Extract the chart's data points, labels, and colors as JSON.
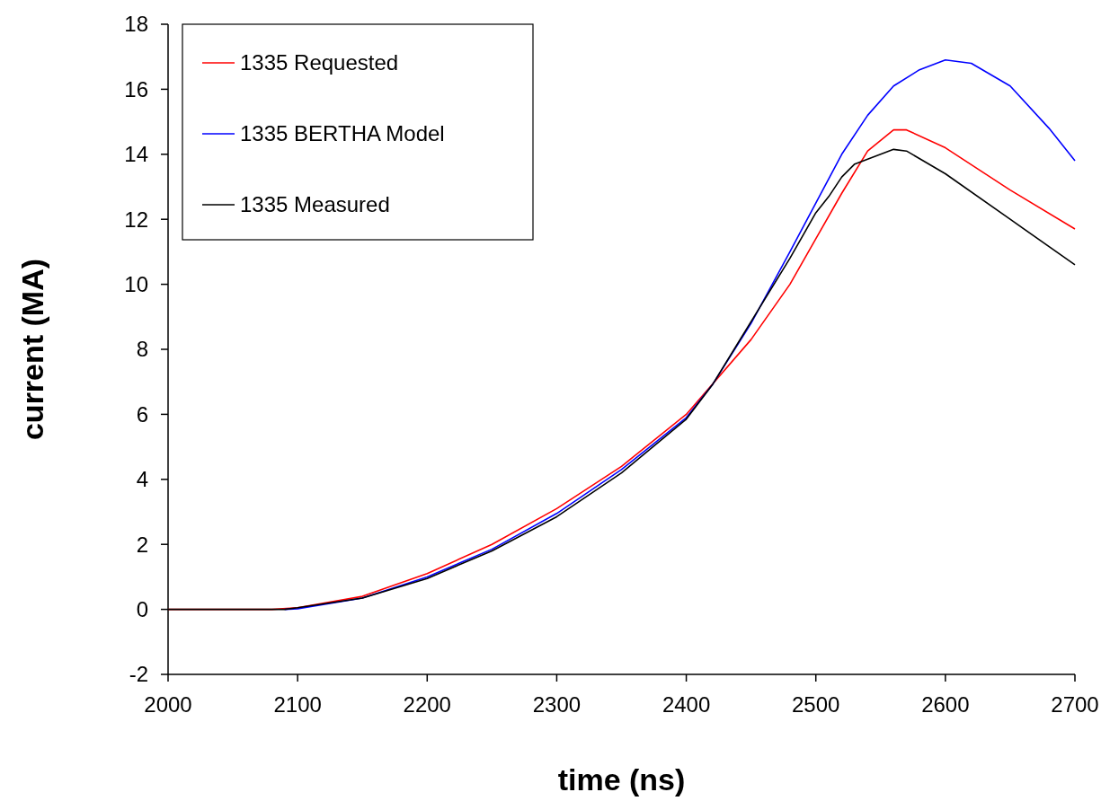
{
  "chart_data": {
    "type": "line",
    "xlabel": "time (ns)",
    "ylabel": "current (MA)",
    "xlim": [
      2000,
      2700
    ],
    "xticks": [
      2000,
      2100,
      2200,
      2300,
      2400,
      2500,
      2600,
      2700
    ],
    "ylim": [
      -2,
      18
    ],
    "yticks": [
      -2,
      0,
      2,
      4,
      6,
      8,
      10,
      12,
      14,
      16,
      18
    ],
    "grid": false,
    "legend": "top left",
    "marker": "none",
    "line_style": "solid",
    "series": [
      {
        "name": "1335 Requested",
        "color": "#ff0000",
        "x": [
          2000,
          2080,
          2100,
          2150,
          2200,
          2250,
          2300,
          2350,
          2400,
          2450,
          2480,
          2500,
          2520,
          2540,
          2560,
          2570,
          2600,
          2650,
          2700
        ],
        "values": [
          0,
          0,
          0.05,
          0.4,
          1.1,
          2.0,
          3.1,
          4.4,
          6.0,
          8.3,
          10.0,
          11.4,
          12.8,
          14.1,
          14.75,
          14.75,
          14.2,
          12.9,
          11.7
        ]
      },
      {
        "name": "1335 BERTHA Model",
        "color": "#0000ff",
        "x": [
          2090,
          2100,
          2150,
          2200,
          2250,
          2300,
          2350,
          2400,
          2420,
          2450,
          2480,
          2500,
          2520,
          2540,
          2560,
          2580,
          2600,
          2620,
          2650,
          2680,
          2700
        ],
        "values": [
          0,
          0.02,
          0.35,
          1.0,
          1.85,
          2.95,
          4.3,
          5.9,
          6.9,
          8.8,
          11.0,
          12.5,
          14.0,
          15.2,
          16.1,
          16.6,
          16.9,
          16.8,
          16.1,
          14.8,
          13.8
        ]
      },
      {
        "name": "1335 Measured",
        "color": "#000000",
        "x": [
          2000,
          2090,
          2100,
          2150,
          2200,
          2250,
          2300,
          2350,
          2400,
          2420,
          2440,
          2460,
          2480,
          2500,
          2510,
          2520,
          2530,
          2540,
          2550,
          2560,
          2570,
          2600,
          2650,
          2700
        ],
        "values": [
          0,
          0,
          0.05,
          0.35,
          0.95,
          1.8,
          2.85,
          4.2,
          5.85,
          6.9,
          8.2,
          9.5,
          10.8,
          12.2,
          12.7,
          13.3,
          13.7,
          13.85,
          14.0,
          14.15,
          14.1,
          13.4,
          12.0,
          10.6
        ]
      }
    ]
  }
}
